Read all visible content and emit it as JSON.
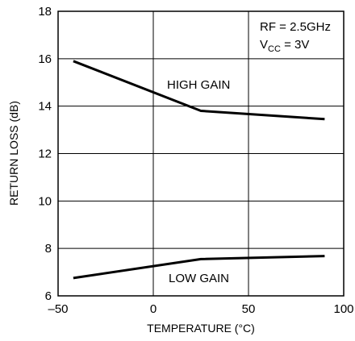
{
  "chart_data": {
    "type": "line",
    "title": "",
    "xlabel": "TEMPERATURE (°C)",
    "ylabel": "RETURN LOSS (dB)",
    "xlim": [
      -50,
      100
    ],
    "ylim": [
      6,
      18
    ],
    "xticks": [
      -50,
      0,
      50,
      100
    ],
    "xtick_labels": [
      "–50",
      "0",
      "50",
      "100"
    ],
    "yticks": [
      6,
      8,
      10,
      12,
      14,
      16,
      18
    ],
    "ytick_labels": [
      "6",
      "8",
      "10",
      "12",
      "14",
      "16",
      "18"
    ],
    "grid": true,
    "legend": "none",
    "series": [
      {
        "name": "HIGH GAIN",
        "x": [
          -42,
          25,
          90
        ],
        "y": [
          15.9,
          13.8,
          13.45
        ]
      },
      {
        "name": "LOW GAIN",
        "x": [
          -42,
          25,
          90
        ],
        "y": [
          6.75,
          7.55,
          7.68
        ]
      }
    ],
    "annotations": {
      "rf": "RF = 2.5GHz",
      "vcc_prefix": "V",
      "vcc_subscript": "CC",
      "vcc_suffix": " = 3V"
    }
  }
}
